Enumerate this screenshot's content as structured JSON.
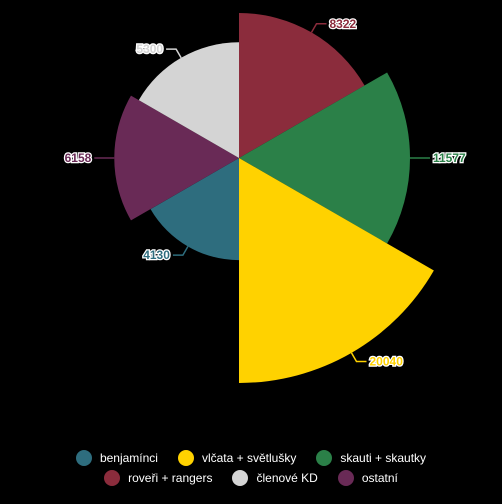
{
  "chart_data": {
    "type": "pie",
    "title": "",
    "series": [
      {
        "name": "roveři + rangers",
        "value": 8322,
        "color": "#8b2c3c",
        "angle_start": 0,
        "angle_end": 60
      },
      {
        "name": "skauti + skautky",
        "value": 11577,
        "color": "#2b8048",
        "angle_start": 60,
        "angle_end": 120
      },
      {
        "name": "vlčata + světlušky",
        "value": 20040,
        "color": "#ffd200",
        "angle_start": 120,
        "angle_end": 180
      },
      {
        "name": "benjamínci",
        "value": 4130,
        "color": "#2e6d7e",
        "angle_start": 180,
        "angle_end": 240
      },
      {
        "name": "ostatní",
        "value": 6158,
        "color": "#692a56",
        "angle_start": 240,
        "angle_end": 300
      },
      {
        "name": "členové KD",
        "value": 5300,
        "color": "#d4d4d4",
        "angle_start": 300,
        "angle_end": 360
      }
    ],
    "legend_placement": "bottom",
    "legend_rows": [
      [
        "benjamínci",
        "vlčata + světlušky",
        "skauti + skautky"
      ],
      [
        "roveři + rangers",
        "členové KD",
        "ostatní"
      ]
    ]
  }
}
